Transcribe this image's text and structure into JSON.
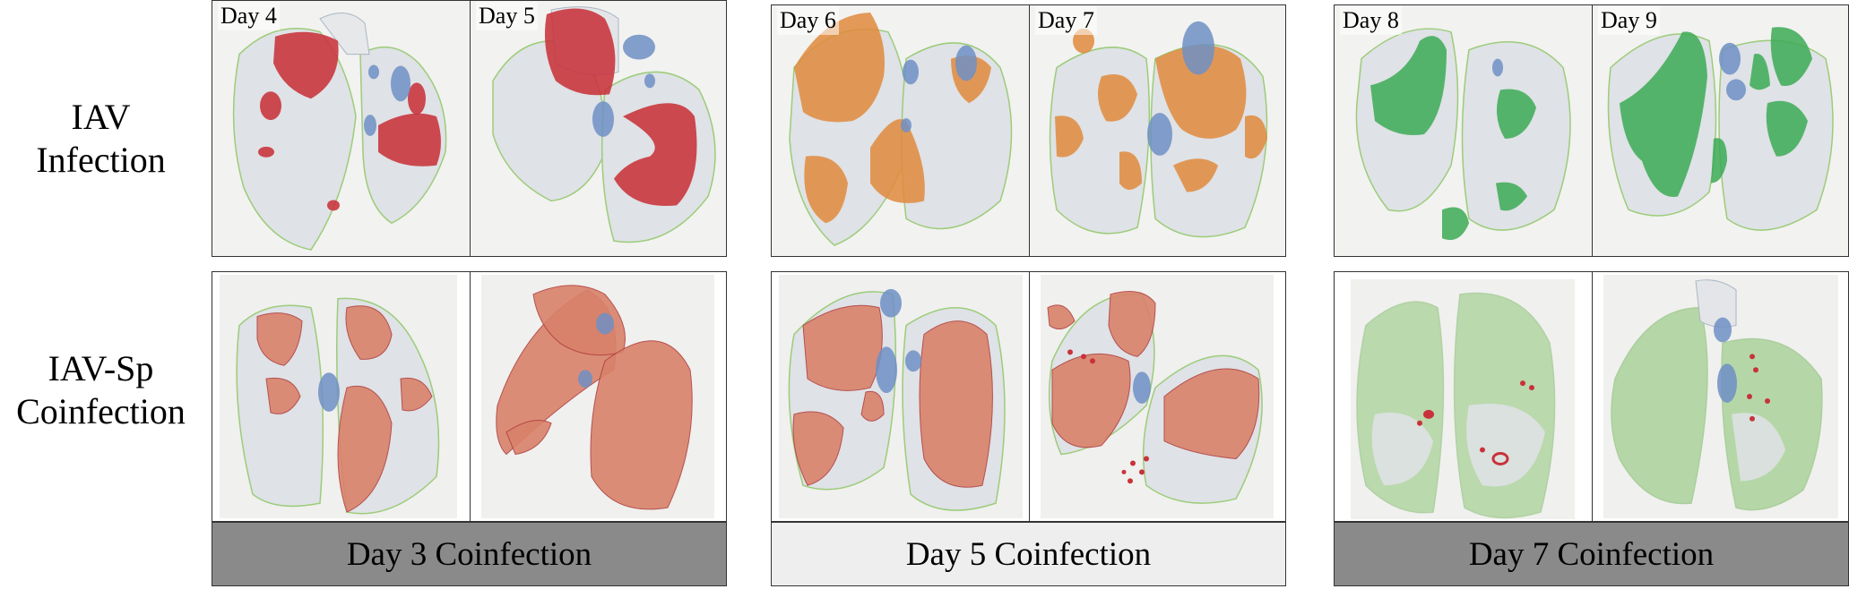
{
  "row_labels": {
    "row1_line1": "IAV",
    "row1_line2": "Infection",
    "row2_line1": "IAV-Sp",
    "row2_line2": "Coinfection"
  },
  "top_panels": [
    "Day 4",
    "Day 5",
    "Day 6",
    "Day 7",
    "Day 8",
    "Day 9"
  ],
  "footers": [
    "Day 3 Coinfection",
    "Day 5 Coinfection",
    "Day 7 Coinfection"
  ],
  "colors": {
    "lesion_red": "#c8323a",
    "lesion_orange": "#e08a3c",
    "lesion_green": "#3caa55",
    "coinfection_red_fill": "#d9826a",
    "coinfection_green_fill": "#8fc878",
    "vessel_blue": "#6f8fc4",
    "tissue_gray": "#dfe2e6",
    "outline_green": "#9ccc7a",
    "footer_dark": "#8a8a8a",
    "footer_light": "#eeeeee"
  }
}
